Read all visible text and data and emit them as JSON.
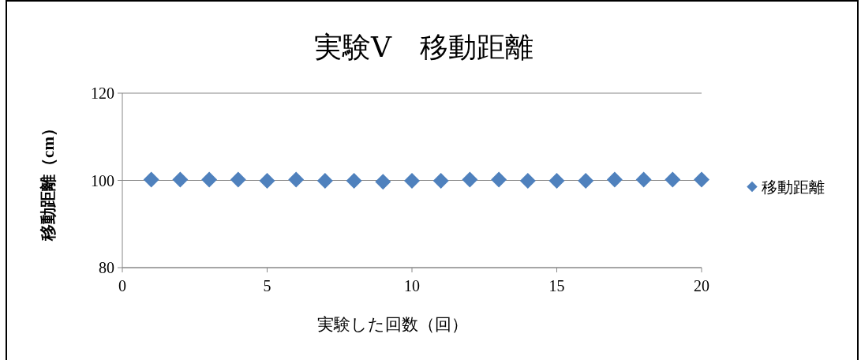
{
  "chart_data": {
    "type": "scatter",
    "title": "実験Ⅴ　移動距離",
    "xlabel": "実験した回数（回）",
    "ylabel": "移動距離（cm）",
    "x": [
      1,
      2,
      3,
      4,
      5,
      6,
      7,
      8,
      9,
      10,
      11,
      12,
      13,
      14,
      15,
      16,
      17,
      18,
      19,
      20
    ],
    "series": [
      {
        "name": "移動距離",
        "color": "#4f81bd",
        "values": [
          100.2,
          100.2,
          100.2,
          100.2,
          99.9,
          100.2,
          99.9,
          99.9,
          99.7,
          99.9,
          99.9,
          100.2,
          100.2,
          99.9,
          99.9,
          99.9,
          100.2,
          100.2,
          100.2,
          100.2
        ]
      }
    ],
    "xlim": [
      0,
      20
    ],
    "xticks": [
      0,
      5,
      10,
      15,
      20
    ],
    "ylim": [
      80,
      120
    ],
    "yticks": [
      80,
      100,
      120
    ],
    "grid": "y",
    "legend": "right",
    "marker": "diamond"
  }
}
